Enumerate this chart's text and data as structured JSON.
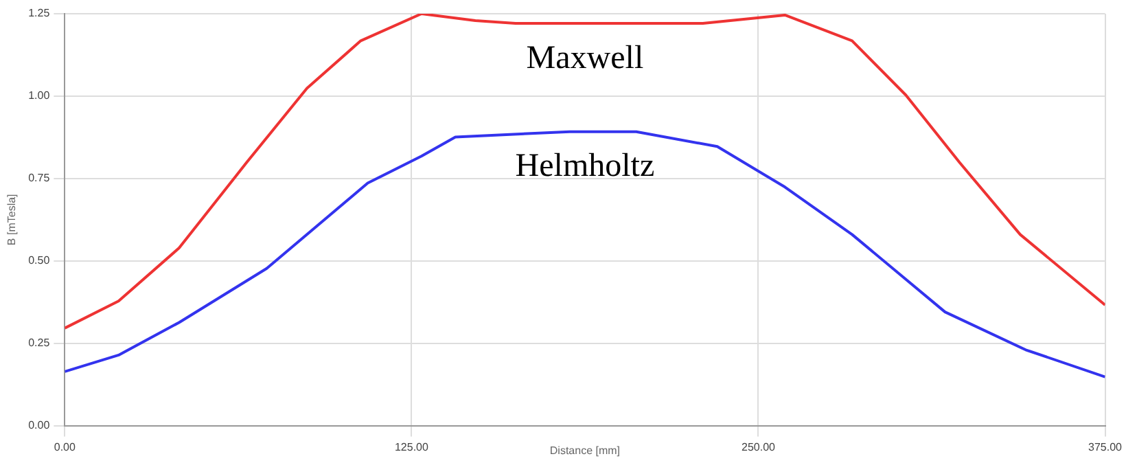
{
  "chart_data": {
    "type": "line",
    "xlabel": "Distance [mm]",
    "ylabel": "B [mTesla]",
    "xlim": [
      0,
      375
    ],
    "xticks": [
      {
        "value": 0,
        "label": "0.00"
      },
      {
        "value": 125,
        "label": "125.00"
      },
      {
        "value": 250,
        "label": "250.00"
      },
      {
        "value": 375,
        "label": "375.00"
      }
    ],
    "ylim": [
      0,
      1.25
    ],
    "yticks": [
      {
        "value": 0,
        "label": "0.00"
      },
      {
        "value": 0.25,
        "label": "0.25"
      },
      {
        "value": 0.5,
        "label": "0.50"
      },
      {
        "value": 0.75,
        "label": "0.75"
      },
      {
        "value": 1,
        "label": "1.00"
      },
      {
        "value": 1.25,
        "label": "1.25"
      }
    ],
    "grid": true,
    "legend": false,
    "marker": "none",
    "line_style": "solid",
    "series": [
      {
        "name": "Maxwell",
        "color": "#ee3333",
        "x": [
          0,
          19.4,
          41.2,
          65.5,
          87.3,
          106.7,
          128.6,
          148,
          162.5,
          206,
          230,
          259.6,
          283.8,
          303.2,
          322.6,
          344.4,
          375
        ],
        "values": [
          0.296,
          0.378,
          0.539,
          0.798,
          1.024,
          1.168,
          1.25,
          1.229,
          1.221,
          1.221,
          1.221,
          1.246,
          1.168,
          1.003,
          0.798,
          0.58,
          0.366
        ]
      },
      {
        "name": "Helmholtz",
        "color": "#3333ee",
        "x": [
          0,
          19.4,
          41.2,
          72.8,
          109.2,
          128.6,
          140.8,
          182,
          206,
          235.2,
          259.6,
          283.8,
          317.3,
          346.4,
          375
        ],
        "values": [
          0.164,
          0.214,
          0.313,
          0.477,
          0.736,
          0.818,
          0.876,
          0.892,
          0.892,
          0.847,
          0.724,
          0.58,
          0.345,
          0.23,
          0.148
        ]
      }
    ]
  }
}
